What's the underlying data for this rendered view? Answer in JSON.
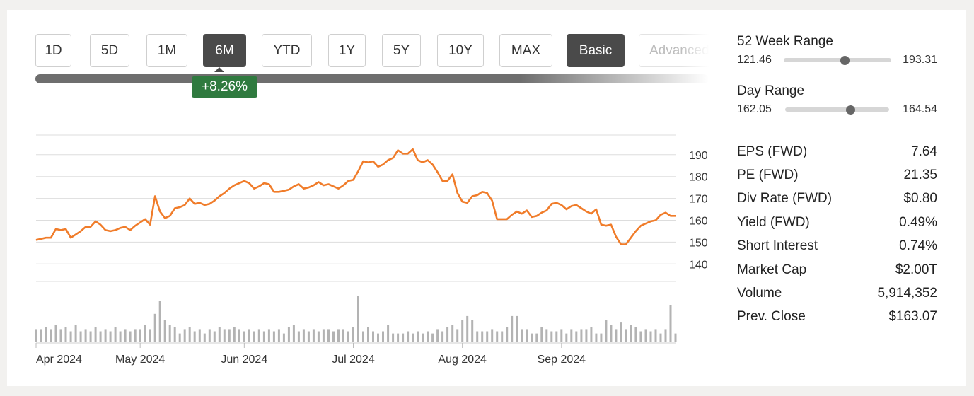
{
  "range_buttons": [
    {
      "label": "1D",
      "state": "normal"
    },
    {
      "label": "5D",
      "state": "normal"
    },
    {
      "label": "1M",
      "state": "normal"
    },
    {
      "label": "6M",
      "state": "active"
    },
    {
      "label": "YTD",
      "state": "normal"
    },
    {
      "label": "1Y",
      "state": "normal"
    },
    {
      "label": "5Y",
      "state": "normal"
    },
    {
      "label": "10Y",
      "state": "normal"
    },
    {
      "label": "MAX",
      "state": "normal"
    }
  ],
  "mode_buttons": [
    {
      "label": "Basic",
      "state": "active"
    },
    {
      "label": "Advanced",
      "state": "disabled"
    }
  ],
  "change_badge": "+8.26%",
  "colors": {
    "line": "#f07c2a",
    "badge": "#2f7a3f",
    "volume": "#b3b3b3",
    "grid": "#dddddd"
  },
  "chart_data": {
    "type": "line",
    "ylim": [
      132,
      199
    ],
    "yticks": [
      140,
      150,
      160,
      170,
      180,
      190
    ],
    "x_tick_labels": [
      "Apr 2024",
      "May 2024",
      "Jun 2024",
      "Jul 2024",
      "Aug 2024",
      "Sep 2024"
    ],
    "x_tick_index": [
      0,
      21,
      42,
      64,
      86,
      106
    ],
    "series": [
      {
        "values": [
          151,
          151.5,
          152,
          152,
          156,
          155.5,
          156,
          152,
          153.5,
          155,
          157,
          157,
          159.5,
          158,
          155.5,
          155,
          155.5,
          156.5,
          157,
          155.5,
          157.5,
          159,
          160.5,
          158,
          171,
          164,
          161,
          162,
          165.5,
          166,
          167,
          170,
          167.5,
          168,
          167,
          167.5,
          169,
          171,
          172.5,
          174.5,
          176,
          177,
          178,
          177,
          174.5,
          175.5,
          177,
          176.5,
          173,
          173,
          173.5,
          174,
          175.5,
          176.5,
          174.5,
          175,
          176,
          177.5,
          176,
          176.5,
          175.5,
          174.5,
          176,
          178,
          178.5,
          182.5,
          187,
          186.5,
          187,
          184.5,
          185.5,
          187.5,
          188.5,
          192,
          190.5,
          190.5,
          192.5,
          187.5,
          186.5,
          187.5,
          185.5,
          182,
          178,
          178,
          181,
          172.5,
          168.5,
          168,
          171,
          171.5,
          173,
          172.5,
          169,
          160.5,
          160.5,
          160.5,
          162.5,
          164,
          163,
          164.5,
          161.5,
          162,
          163.5,
          164.5,
          167.5,
          168,
          167,
          165,
          166.5,
          167,
          165.5,
          164,
          163,
          165,
          158,
          157.5,
          158,
          152.5,
          149,
          149,
          152,
          155,
          157.5,
          158.5,
          159.5,
          160,
          162.5,
          163.5,
          162,
          162
        ]
      }
    ],
    "volume": [
      6,
      6,
      7,
      6,
      8,
      6,
      7,
      5,
      8,
      5,
      6,
      5,
      7,
      5,
      6,
      5,
      7,
      5,
      6,
      5,
      6,
      6,
      8,
      6,
      13,
      19,
      10,
      8,
      7,
      4,
      6,
      7,
      5,
      6,
      4,
      6,
      5,
      7,
      6,
      6,
      7,
      6,
      5,
      6,
      5,
      6,
      5,
      6,
      5,
      6,
      4,
      7,
      8,
      5,
      6,
      5,
      6,
      5,
      6,
      6,
      5,
      6,
      6,
      5,
      7,
      21,
      5,
      7,
      5,
      4,
      5,
      8,
      4,
      4,
      4,
      5,
      4,
      5,
      4,
      5,
      4,
      6,
      5,
      7,
      8,
      6,
      10,
      12,
      10,
      5,
      5,
      5,
      6,
      5,
      5,
      7,
      12,
      12,
      6,
      6,
      4,
      4,
      7,
      6,
      5,
      5,
      6,
      4,
      6,
      5,
      6,
      6,
      7,
      4,
      4,
      10,
      8,
      6,
      9,
      6,
      8,
      7,
      5,
      6,
      5,
      6,
      4,
      6,
      17,
      4
    ]
  },
  "stats": {
    "week52": {
      "title": "52 Week Range",
      "low": "121.46",
      "high": "193.31",
      "position": 0.57
    },
    "day": {
      "title": "Day Range",
      "low": "162.05",
      "high": "164.54",
      "position": 0.63
    },
    "rows": [
      {
        "label": "EPS (FWD)",
        "value": "7.64"
      },
      {
        "label": "PE (FWD)",
        "value": "21.35"
      },
      {
        "label": "Div Rate (FWD)",
        "value": "$0.80"
      },
      {
        "label": "Yield (FWD)",
        "value": "0.49%"
      },
      {
        "label": "Short Interest",
        "value": "0.74%"
      },
      {
        "label": "Market Cap",
        "value": "$2.00T"
      },
      {
        "label": "Volume",
        "value": "5,914,352"
      },
      {
        "label": "Prev. Close",
        "value": "$163.07"
      }
    ]
  }
}
